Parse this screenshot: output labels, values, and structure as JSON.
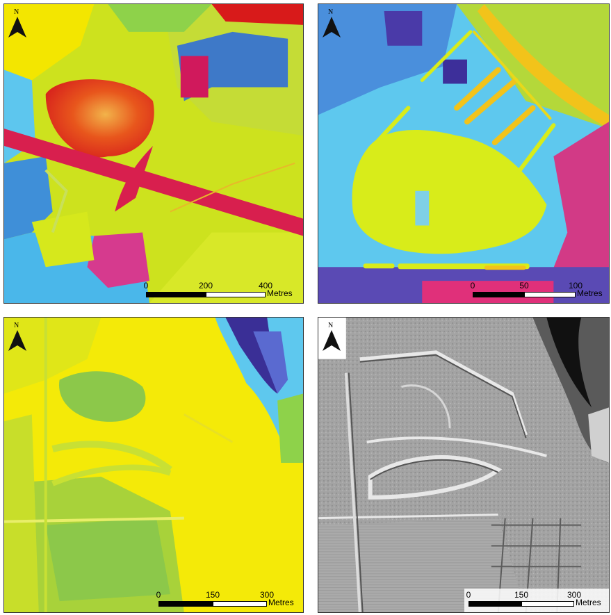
{
  "panels": [
    {
      "id": "p1",
      "north_label": "N",
      "scale": {
        "ticks": [
          "0",
          "200",
          "400"
        ],
        "unit": "Metres"
      }
    },
    {
      "id": "p2",
      "north_label": "N",
      "scale": {
        "ticks": [
          "0",
          "50",
          "100"
        ],
        "unit": "Metres"
      }
    },
    {
      "id": "p3",
      "north_label": "N",
      "scale": {
        "ticks": [
          "0",
          "150",
          "300"
        ],
        "unit": "Metres"
      }
    },
    {
      "id": "p4",
      "north_label": "N",
      "scale": {
        "ticks": [
          "0",
          "150",
          "300"
        ],
        "unit": "Metres"
      }
    }
  ],
  "colors": {
    "ramp_low": "#3a3aa0",
    "ramp_mid_low": "#4fc3f7",
    "ramp_mid": "#d6e81c",
    "ramp_high": "#f7f000",
    "ramp_top": "#e0201c",
    "hillshade": "#9a9a9a"
  }
}
